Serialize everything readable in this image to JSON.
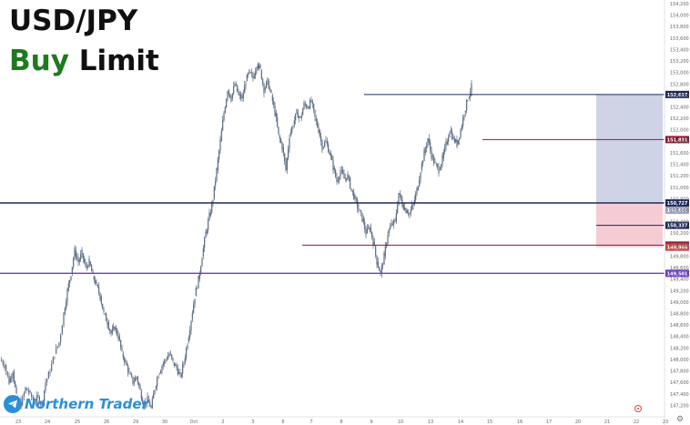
{
  "title": {
    "symbol": "USD/JPY",
    "word1": "Buy",
    "word2": "Limit"
  },
  "watermark": {
    "brand": "Northern Trader",
    "icon": "telegram-icon"
  },
  "settings_icon": "gear-icon",
  "colors": {
    "navy": "#1b2a5c",
    "maroon": "#8c1d33",
    "purple": "#6a3fc4",
    "tp_zone": "#c6cbe0",
    "sl_zone": "#f5c6cf",
    "candle": "#5b6b82",
    "green_text": "#1e7a1e"
  },
  "chart_data": {
    "type": "candlestick",
    "symbol": "USD/JPY",
    "ylim": [
      147.0,
      154.2
    ],
    "y_ticks": [
      "154,200",
      "154,000",
      "153,800",
      "153,600",
      "153,400",
      "153,200",
      "153,000",
      "152,800",
      "152,600",
      "152,400",
      "152,200",
      "152,000",
      "151,800",
      "151,600",
      "151,400",
      "151,200",
      "151,000",
      "150,800",
      "150,600",
      "150,400",
      "150,200",
      "150,000",
      "149,800",
      "149,600",
      "149,400",
      "149,200",
      "149,000",
      "148,800",
      "148,600",
      "148,400",
      "148,200",
      "148,000",
      "147,800",
      "147,600",
      "147,400",
      "147,200"
    ],
    "x_ticks": [
      "23",
      "24",
      "25",
      "26",
      "29",
      "30",
      "Oct",
      "2",
      "3",
      "6",
      "7",
      "8",
      "9",
      "10",
      "13",
      "14",
      "15",
      "16",
      "17",
      "20",
      "21",
      "22",
      "23"
    ],
    "price_path": [
      [
        0,
        148.0
      ],
      [
        5,
        147.9
      ],
      [
        10,
        147.6
      ],
      [
        14,
        147.8
      ],
      [
        18,
        147.35
      ],
      [
        23,
        147.2
      ],
      [
        28,
        147.5
      ],
      [
        33,
        147.4
      ],
      [
        38,
        147.25
      ],
      [
        42,
        147.35
      ],
      [
        46,
        147.2
      ],
      [
        50,
        147.6
      ],
      [
        55,
        147.8
      ],
      [
        60,
        148.1
      ],
      [
        65,
        148.3
      ],
      [
        70,
        148.8
      ],
      [
        74,
        149.2
      ],
      [
        78,
        149.5
      ],
      [
        82,
        149.9
      ],
      [
        86,
        149.7
      ],
      [
        90,
        149.85
      ],
      [
        94,
        149.6
      ],
      [
        98,
        149.7
      ],
      [
        102,
        149.45
      ],
      [
        106,
        149.3
      ],
      [
        110,
        149.1
      ],
      [
        114,
        148.8
      ],
      [
        118,
        148.65
      ],
      [
        122,
        148.45
      ],
      [
        126,
        148.55
      ],
      [
        130,
        148.4
      ],
      [
        134,
        148.1
      ],
      [
        138,
        147.95
      ],
      [
        142,
        147.75
      ],
      [
        146,
        147.6
      ],
      [
        150,
        147.7
      ],
      [
        154,
        147.45
      ],
      [
        158,
        147.2
      ],
      [
        162,
        147.3
      ],
      [
        166,
        147.15
      ],
      [
        170,
        147.5
      ],
      [
        174,
        147.75
      ],
      [
        178,
        147.9
      ],
      [
        182,
        148.0
      ],
      [
        186,
        148.1
      ],
      [
        190,
        147.95
      ],
      [
        194,
        147.85
      ],
      [
        198,
        147.7
      ],
      [
        202,
        147.95
      ],
      [
        206,
        148.3
      ],
      [
        210,
        148.7
      ],
      [
        214,
        149.1
      ],
      [
        218,
        149.4
      ],
      [
        222,
        149.8
      ],
      [
        226,
        150.2
      ],
      [
        230,
        150.5
      ],
      [
        234,
        150.8
      ],
      [
        238,
        151.3
      ],
      [
        242,
        151.8
      ],
      [
        246,
        152.3
      ],
      [
        250,
        152.7
      ],
      [
        254,
        152.55
      ],
      [
        258,
        152.8
      ],
      [
        262,
        152.6
      ],
      [
        266,
        152.55
      ],
      [
        270,
        152.85
      ],
      [
        274,
        153.0
      ],
      [
        278,
        152.9
      ],
      [
        282,
        153.15
      ],
      [
        286,
        153.05
      ],
      [
        290,
        152.7
      ],
      [
        294,
        152.85
      ],
      [
        298,
        152.6
      ],
      [
        302,
        152.3
      ],
      [
        306,
        151.9
      ],
      [
        310,
        151.7
      ],
      [
        314,
        151.3
      ],
      [
        318,
        151.9
      ],
      [
        322,
        152.1
      ],
      [
        326,
        152.3
      ],
      [
        330,
        152.2
      ],
      [
        334,
        152.45
      ],
      [
        338,
        152.4
      ],
      [
        342,
        152.5
      ],
      [
        346,
        152.2
      ],
      [
        350,
        152.0
      ],
      [
        354,
        151.7
      ],
      [
        358,
        151.8
      ],
      [
        362,
        151.6
      ],
      [
        366,
        151.35
      ],
      [
        370,
        151.1
      ],
      [
        374,
        151.3
      ],
      [
        378,
        151.15
      ],
      [
        382,
        151.2
      ],
      [
        386,
        150.95
      ],
      [
        390,
        150.8
      ],
      [
        394,
        150.6
      ],
      [
        398,
        150.45
      ],
      [
        402,
        150.2
      ],
      [
        406,
        150.3
      ],
      [
        410,
        150.05
      ],
      [
        414,
        149.7
      ],
      [
        418,
        149.5
      ],
      [
        422,
        149.8
      ],
      [
        426,
        150.2
      ],
      [
        430,
        150.35
      ],
      [
        434,
        150.4
      ],
      [
        438,
        150.9
      ],
      [
        442,
        150.7
      ],
      [
        446,
        150.6
      ],
      [
        450,
        150.55
      ],
      [
        454,
        150.7
      ],
      [
        458,
        150.95
      ],
      [
        462,
        151.3
      ],
      [
        466,
        151.6
      ],
      [
        470,
        151.85
      ],
      [
        474,
        151.55
      ],
      [
        478,
        151.4
      ],
      [
        482,
        151.3
      ],
      [
        486,
        151.5
      ],
      [
        490,
        151.75
      ],
      [
        494,
        152.0
      ],
      [
        498,
        151.85
      ],
      [
        502,
        151.75
      ],
      [
        506,
        152.0
      ],
      [
        510,
        152.3
      ],
      [
        514,
        152.55
      ],
      [
        518,
        152.75
      ]
    ],
    "levels": [
      {
        "name": "target",
        "price": 152.617,
        "label": "152,617",
        "color": "#1b2a5c",
        "start": "8"
      },
      {
        "name": "resistance",
        "price": 151.831,
        "label": "151,831",
        "color": "#8c1d33",
        "start": "15"
      },
      {
        "name": "entry",
        "price": 150.727,
        "label": "150,727",
        "color": "#1b2a5c",
        "start": "23"
      },
      {
        "name": "entry-zone",
        "price": 150.601,
        "label": "150,601",
        "color": "#9aa2c0",
        "start": "20"
      },
      {
        "name": "support",
        "price": 150.337,
        "label": "150,337",
        "color": "#1b2a5c",
        "start": "20"
      },
      {
        "name": "stop",
        "price": 149.992,
        "label": "149,992",
        "color": "#8c1d33",
        "start": "7"
      },
      {
        "name": "stop-sub",
        "price": 149.955,
        "label": "149,955",
        "color": "#c44",
        "start": "20"
      },
      {
        "name": "key-low",
        "price": 149.501,
        "label": "149,501",
        "color": "#6a3fc4",
        "start": "23"
      }
    ],
    "position": {
      "entry": 150.727,
      "target": 152.617,
      "stop": 149.955,
      "start_date": "20"
    }
  }
}
